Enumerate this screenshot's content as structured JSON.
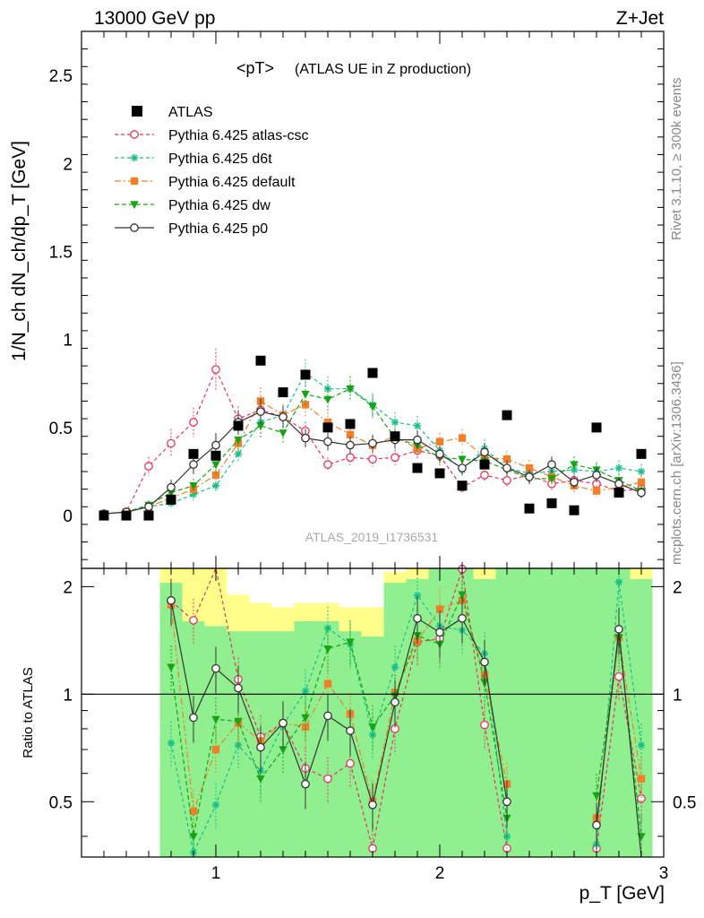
{
  "header": {
    "left": "13000 GeV pp",
    "right": "Z+Jet",
    "side_top": "Rivet 3.1.10, ≥ 300k events",
    "side_bottom": "mcplots.cern.ch [arXiv:1306.3436]"
  },
  "chart_data": {
    "type": "scatter",
    "title": "<pT>",
    "subtitle": "(ATLAS UE in Z production)",
    "watermark": "ATLAS_2019_I1736531",
    "xlabel": "p_T [GeV]",
    "ylabel": "1/N_ch dN_ch/dp_T [GeV]",
    "ratio_ylabel": "Ratio to ATLAS",
    "xlim": [
      0.4,
      3.0
    ],
    "ylim": [
      -0.3,
      2.75
    ],
    "ratio_ylim": [
      0.35,
      2.25
    ],
    "x_ticks": [
      "1",
      "2",
      "3"
    ],
    "y_ticks": [
      "0",
      "0.5",
      "1",
      "1.5",
      "2",
      "2.5"
    ],
    "ratio_ticks": [
      "0.5",
      "1",
      "2"
    ],
    "x": [
      0.5,
      0.6,
      0.7,
      0.8,
      0.9,
      1.0,
      1.1,
      1.2,
      1.3,
      1.4,
      1.5,
      1.6,
      1.7,
      1.8,
      1.9,
      2.0,
      2.1,
      2.2,
      2.3,
      2.4,
      2.5,
      2.6,
      2.7,
      2.8,
      2.9
    ],
    "data": {
      "name": "ATLAS",
      "values": [
        0.0,
        0.0,
        0.0,
        0.09,
        0.35,
        0.34,
        0.51,
        0.88,
        0.7,
        0.8,
        0.5,
        0.52,
        0.81,
        0.45,
        0.27,
        0.24,
        0.17,
        0.29,
        0.57,
        0.04,
        0.07,
        0.03,
        0.5,
        0.13,
        0.35
      ]
    },
    "series": [
      {
        "name": "Pythia 6.425 atlas-csc",
        "color": "#e8335a",
        "marker": "open-circle",
        "dash": "4,3",
        "values": [
          0.01,
          0.02,
          0.28,
          0.41,
          0.53,
          0.83,
          0.55,
          0.6,
          0.56,
          0.48,
          0.29,
          0.33,
          0.32,
          0.33,
          0.37,
          0.34,
          0.16,
          0.23,
          0.2,
          0.23,
          0.18,
          0.2,
          0.18,
          0.14,
          0.15
        ]
      },
      {
        "name": "Pythia 6.425 d6t",
        "color": "#17c08a",
        "marker": "star",
        "dash": "4,3",
        "values": [
          0.01,
          0.02,
          0.05,
          0.07,
          0.12,
          0.17,
          0.35,
          0.53,
          0.57,
          0.81,
          0.72,
          0.72,
          0.63,
          0.53,
          0.51,
          0.37,
          0.26,
          0.38,
          0.27,
          0.24,
          0.25,
          0.26,
          0.25,
          0.27,
          0.25
        ]
      },
      {
        "name": "Pythia 6.425 default",
        "color": "#f07f2a",
        "marker": "filled-square",
        "dash": "7,3,2,3",
        "values": [
          0.01,
          0.02,
          0.05,
          0.1,
          0.15,
          0.23,
          0.41,
          0.65,
          0.57,
          0.63,
          0.53,
          0.46,
          0.4,
          0.45,
          0.38,
          0.42,
          0.44,
          0.33,
          0.32,
          0.27,
          0.22,
          0.17,
          0.14,
          0.16,
          0.19
        ]
      },
      {
        "name": "Pythia 6.425 dw",
        "color": "#1aa316",
        "marker": "triangle-down",
        "dash": "5,3",
        "values": [
          0.01,
          0.02,
          0.06,
          0.13,
          0.17,
          0.29,
          0.43,
          0.51,
          0.47,
          0.69,
          0.66,
          0.72,
          0.62,
          0.44,
          0.4,
          0.33,
          0.32,
          0.31,
          0.26,
          0.21,
          0.21,
          0.29,
          0.26,
          0.2,
          0.14
        ]
      },
      {
        "name": "Pythia 6.425 p0",
        "color": "#333333",
        "marker": "open-circle",
        "dash": "",
        "values": [
          0.01,
          0.02,
          0.05,
          0.16,
          0.29,
          0.4,
          0.53,
          0.59,
          0.56,
          0.44,
          0.42,
          0.4,
          0.41,
          0.43,
          0.43,
          0.35,
          0.27,
          0.36,
          0.27,
          0.22,
          0.29,
          0.19,
          0.23,
          0.18,
          0.13
        ]
      }
    ],
    "ratio": [
      {
        "name": "Pythia 6.425 atlas-csc",
        "values": [
          null,
          null,
          null,
          1.82,
          1.61,
          2.34,
          1.1,
          0.76,
          0.83,
          0.62,
          0.58,
          0.64,
          0.37,
          0.8,
          1.4,
          1.43,
          2.24,
          0.82,
          0.37,
          null,
          null,
          null,
          0.37,
          1.12,
          0.51
        ]
      },
      {
        "name": "Pythia 6.425 d6t",
        "values": [
          null,
          null,
          null,
          0.73,
          0.36,
          0.49,
          0.72,
          0.61,
          0.82,
          1.02,
          1.53,
          1.38,
          0.77,
          1.19,
          1.89,
          1.55,
          1.51,
          1.3,
          0.4,
          null,
          null,
          null,
          0.38,
          2.06,
          0.72
        ]
      },
      {
        "name": "Pythia 6.425 default",
        "values": [
          null,
          null,
          null,
          1.78,
          0.47,
          0.7,
          0.83,
          0.74,
          0.83,
          0.81,
          1.07,
          0.88,
          0.5,
          1.01,
          1.41,
          1.73,
          1.83,
          1.13,
          0.56,
          null,
          null,
          null,
          0.45,
          1.44,
          0.58
        ]
      },
      {
        "name": "Pythia 6.425 dw",
        "values": [
          null,
          null,
          null,
          1.19,
          0.4,
          0.85,
          0.84,
          0.58,
          0.7,
          0.86,
          1.34,
          1.4,
          0.81,
          0.99,
          1.46,
          1.38,
          1.9,
          1.08,
          0.45,
          null,
          null,
          null,
          0.52,
          1.44,
          0.4
        ]
      },
      {
        "name": "Pythia 6.425 p0",
        "values": [
          null,
          null,
          null,
          1.83,
          0.86,
          1.18,
          1.04,
          0.71,
          0.83,
          0.56,
          0.87,
          0.79,
          0.49,
          0.95,
          1.63,
          1.49,
          1.63,
          1.23,
          0.5,
          null,
          null,
          null,
          0.43,
          1.52,
          0.33
        ]
      }
    ],
    "ratio_bands": {
      "color_inner": "#90f090",
      "color_outer": "#ffff8a",
      "edges": [
        0.75,
        0.85,
        0.95,
        1.05,
        1.15,
        1.25,
        1.35,
        1.45,
        1.55,
        1.65,
        1.75,
        1.85,
        1.95,
        2.05,
        2.15,
        2.25,
        2.35,
        2.45,
        2.55,
        2.65,
        2.75,
        2.85,
        2.95
      ],
      "inner_lo": [
        0.35,
        0.35,
        0.35,
        0.35,
        0.35,
        0.35,
        0.35,
        0.35,
        0.35,
        0.35,
        0.35,
        0.35,
        0.35,
        0.35,
        0.35,
        0.35,
        0.35,
        0.35,
        0.35,
        0.35,
        0.35,
        0.35
      ],
      "inner_hi": [
        2.05,
        1.6,
        1.55,
        1.5,
        1.5,
        1.5,
        1.6,
        1.6,
        1.5,
        1.45,
        2.05,
        2.1,
        2.25,
        2.25,
        2.1,
        2.25,
        2.25,
        2.25,
        2.25,
        2.25,
        2.25,
        2.1
      ],
      "yellow_lo": [
        0.35,
        0.35,
        0.35,
        0.44,
        0.52,
        0.55,
        0.62,
        0.62,
        0.62,
        0.62,
        0.72,
        0.35,
        0.35,
        0.35,
        0.35,
        0.35,
        0.35,
        0.35,
        0.35,
        0.35,
        0.48,
        0.35
      ],
      "yellow_hi": [
        2.25,
        2.25,
        2.25,
        1.9,
        1.8,
        1.75,
        1.8,
        1.8,
        1.75,
        1.75,
        2.2,
        2.25,
        2.25,
        2.25,
        2.25,
        2.25,
        2.25,
        2.25,
        2.25,
        2.25,
        2.25,
        2.25
      ]
    }
  }
}
